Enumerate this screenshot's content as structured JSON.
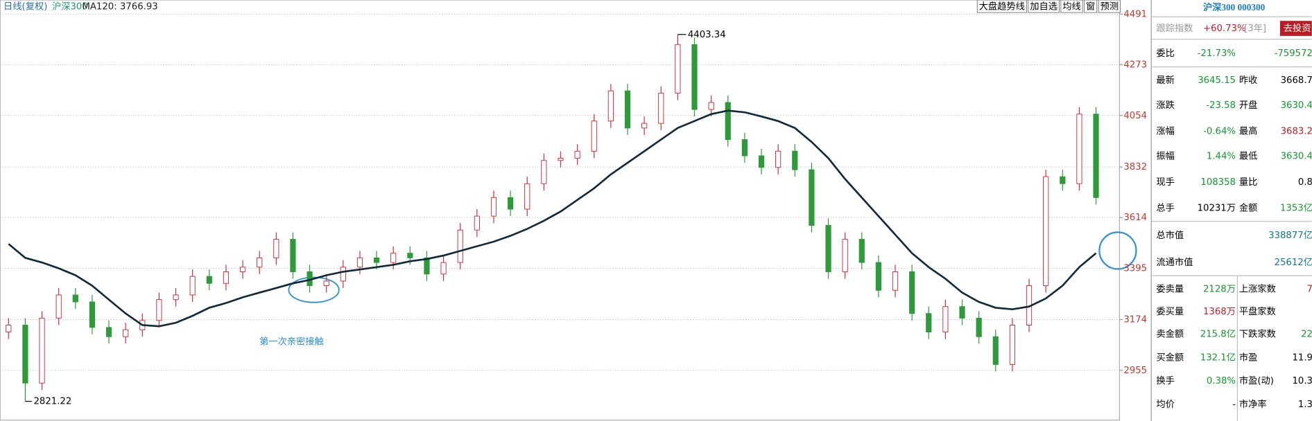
{
  "chart_data": {
    "type": "candlestick",
    "header": {
      "period": "日线(复权)",
      "symbol": "沪深300"
    },
    "buttons": [
      "大盘趋势线",
      "加自选",
      "均线",
      "窗",
      "预测"
    ],
    "annotation": "第一次亲密接触",
    "ylim": [
      2740,
      4552
    ],
    "yticks": [
      4491,
      4273,
      4054,
      3832,
      3614,
      3395,
      3174,
      2955
    ],
    "grid": true,
    "up_color": "#d0303a",
    "down_color": "#2f9a3a",
    "open": [
      3120,
      3150,
      2900,
      3180,
      3280,
      3250,
      3140,
      3100,
      3130,
      3170,
      3260,
      3280,
      3360,
      3330,
      3380,
      3400,
      3440,
      3520,
      3380,
      3320,
      3340,
      3400,
      3440,
      3420,
      3460,
      3440,
      3370,
      3420,
      3560,
      3620,
      3700,
      3650,
      3760,
      3860,
      3870,
      3900,
      4030,
      4160,
      4000,
      4020,
      4150,
      4360,
      4080,
      4110,
      3950,
      3880,
      3830,
      3900,
      3820,
      3580,
      3380,
      3520,
      3420,
      3300,
      3380,
      3200,
      3120,
      3230,
      3180,
      3100,
      2980,
      3150,
      3320,
      3790,
      3760,
      4060
    ],
    "high": [
      3180,
      3180,
      3210,
      3310,
      3310,
      3280,
      3170,
      3160,
      3200,
      3290,
      3310,
      3390,
      3390,
      3410,
      3430,
      3470,
      3550,
      3550,
      3410,
      3370,
      3430,
      3470,
      3470,
      3490,
      3490,
      3470,
      3450,
      3590,
      3650,
      3730,
      3730,
      3790,
      3890,
      3900,
      3930,
      4060,
      4190,
      4190,
      4050,
      4180,
      4403.34,
      4390,
      4140,
      4140,
      3980,
      3910,
      3930,
      3930,
      3850,
      3610,
      3550,
      3550,
      3450,
      3410,
      3410,
      3230,
      3260,
      3260,
      3210,
      3130,
      3180,
      3350,
      3820,
      3820,
      4090,
      4090
    ],
    "low": [
      3090,
      2821.22,
      2870,
      3150,
      3220,
      3110,
      3070,
      3070,
      3100,
      3140,
      3230,
      3250,
      3300,
      3300,
      3350,
      3370,
      3410,
      3350,
      3290,
      3290,
      3310,
      3370,
      3390,
      3390,
      3410,
      3340,
      3340,
      3390,
      3530,
      3590,
      3620,
      3620,
      3730,
      3830,
      3840,
      3870,
      4000,
      3970,
      3970,
      3990,
      4120,
      4050,
      4050,
      3920,
      3850,
      3800,
      3800,
      3790,
      3550,
      3350,
      3350,
      3390,
      3270,
      3270,
      3170,
      3090,
      3090,
      3150,
      3070,
      2950,
      2950,
      3120,
      3290,
      3730,
      3730,
      3670
    ],
    "close": [
      3150,
      2900,
      3180,
      3280,
      3250,
      3140,
      3100,
      3130,
      3170,
      3260,
      3280,
      3360,
      3330,
      3380,
      3400,
      3440,
      3520,
      3380,
      3320,
      3340,
      3400,
      3440,
      3420,
      3460,
      3440,
      3370,
      3420,
      3560,
      3620,
      3700,
      3650,
      3760,
      3860,
      3870,
      3900,
      4030,
      4160,
      4000,
      4020,
      4150,
      4360,
      4080,
      4110,
      3950,
      3880,
      3830,
      3900,
      3820,
      3580,
      3380,
      3520,
      3420,
      3300,
      3380,
      3200,
      3120,
      3230,
      3180,
      3100,
      2980,
      3150,
      3320,
      3790,
      3760,
      4060,
      3700
    ],
    "series": [
      {
        "name": "MA120",
        "color": "#0f2a3c",
        "values": [
          3500,
          3440,
          3420,
          3395,
          3365,
          3320,
          3260,
          3200,
          3150,
          3145,
          3160,
          3190,
          3225,
          3245,
          3270,
          3290,
          3310,
          3330,
          3345,
          3365,
          3380,
          3390,
          3400,
          3410,
          3425,
          3435,
          3450,
          3470,
          3490,
          3510,
          3535,
          3565,
          3600,
          3640,
          3690,
          3740,
          3800,
          3850,
          3900,
          3950,
          4000,
          4030,
          4060,
          4075,
          4068,
          4050,
          4030,
          4000,
          3940,
          3870,
          3780,
          3700,
          3620,
          3540,
          3460,
          3400,
          3350,
          3290,
          3250,
          3225,
          3218,
          3230,
          3265,
          3320,
          3400,
          3460
        ]
      }
    ],
    "last_value": {
      "value": 3766.93,
      "label": ": 3766.93"
    }
  },
  "panel": {
    "title": "沪深300 000300",
    "track": {
      "label": "跟踪指数",
      "value": "+60.73%",
      "period": "[3年]",
      "button": "去投资"
    },
    "rows": [
      {
        "cells": [
          "委比",
          "-21.73%",
          "",
          "-759572"
        ],
        "colors": [
          "#129a2e",
          "#129a2e"
        ]
      },
      {
        "cells": [
          "最新",
          "3645.15",
          "昨收",
          "3668.7"
        ],
        "colors": [
          "#129a2e",
          "#000000"
        ]
      },
      {
        "cells": [
          "涨跌",
          "-23.58",
          "开盘",
          "3630.4"
        ],
        "colors": [
          "#129a2e",
          "#129a2e"
        ]
      },
      {
        "cells": [
          "涨幅",
          "-0.64%",
          "最高",
          "3683.2"
        ],
        "colors": [
          "#129a2e",
          "#c0202a"
        ]
      },
      {
        "cells": [
          "振幅",
          "1.44%",
          "最低",
          "3630.4"
        ],
        "colors": [
          "#129a2e",
          "#129a2e"
        ]
      },
      {
        "cells": [
          "现手",
          "108358",
          "量比",
          "0.8"
        ],
        "colors": [
          "#129a2e",
          "#000000"
        ]
      },
      {
        "cells": [
          "总手",
          "10231万",
          "金额",
          "1353亿"
        ],
        "colors": [
          "#000000",
          "#129a2e"
        ]
      },
      {
        "cells": [
          "总市值",
          "",
          "",
          "338877亿"
        ],
        "colors": [
          "#000000",
          "#0f7a8a"
        ]
      },
      {
        "cells": [
          "流通市值",
          "",
          "",
          "25612亿"
        ],
        "colors": [
          "#000000",
          "#0f7a8a"
        ]
      },
      {
        "cells": [
          "委卖量",
          "2128万",
          "上涨家数",
          "7"
        ],
        "colors": [
          "#129a2e",
          "#c0202a"
        ]
      },
      {
        "cells": [
          "委买量",
          "1368万",
          "平盘家数",
          ""
        ],
        "colors": [
          "#c0202a",
          "#000000"
        ]
      },
      {
        "cells": [
          "卖金额",
          "215.8亿",
          "下跌家数",
          "22"
        ],
        "colors": [
          "#129a2e",
          "#129a2e"
        ]
      },
      {
        "cells": [
          "买金额",
          "132.1亿",
          "市盈",
          "11.9"
        ],
        "colors": [
          "#129a2e",
          "#000000"
        ]
      },
      {
        "cells": [
          "换手",
          "0.38%",
          "市盈(动)",
          "10.3"
        ],
        "colors": [
          "#129a2e",
          "#000000"
        ]
      },
      {
        "cells": [
          "均价",
          "-",
          "市净率",
          "1.3"
        ],
        "colors": [
          "#000000",
          "#000000"
        ]
      }
    ]
  }
}
